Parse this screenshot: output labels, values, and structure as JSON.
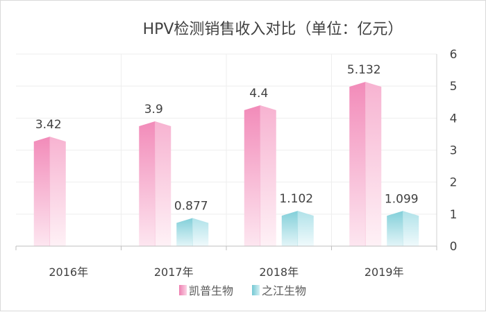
{
  "chart_data": {
    "type": "bar",
    "title": "HPV检测销售收入对比（单位：亿元）",
    "categories": [
      "2016年",
      "2017年",
      "2018年",
      "2019年"
    ],
    "series": [
      {
        "name": "凯普生物",
        "values": [
          3.42,
          3.9,
          4.4,
          5.132
        ],
        "labels": [
          "3.42",
          "3.9",
          "4.4",
          "5.132"
        ],
        "color": "#f08cb8"
      },
      {
        "name": "之江生物",
        "values": [
          null,
          0.877,
          1.102,
          1.099
        ],
        "labels": [
          "",
          "0.877",
          "1.102",
          "1.099"
        ],
        "color": "#8fd3dc"
      }
    ],
    "yaxis_position": "right",
    "yticks": [
      0,
      1,
      2,
      3,
      4,
      5,
      6
    ],
    "ylim": [
      0,
      6
    ],
    "grid": true,
    "legend_position": "bottom"
  }
}
